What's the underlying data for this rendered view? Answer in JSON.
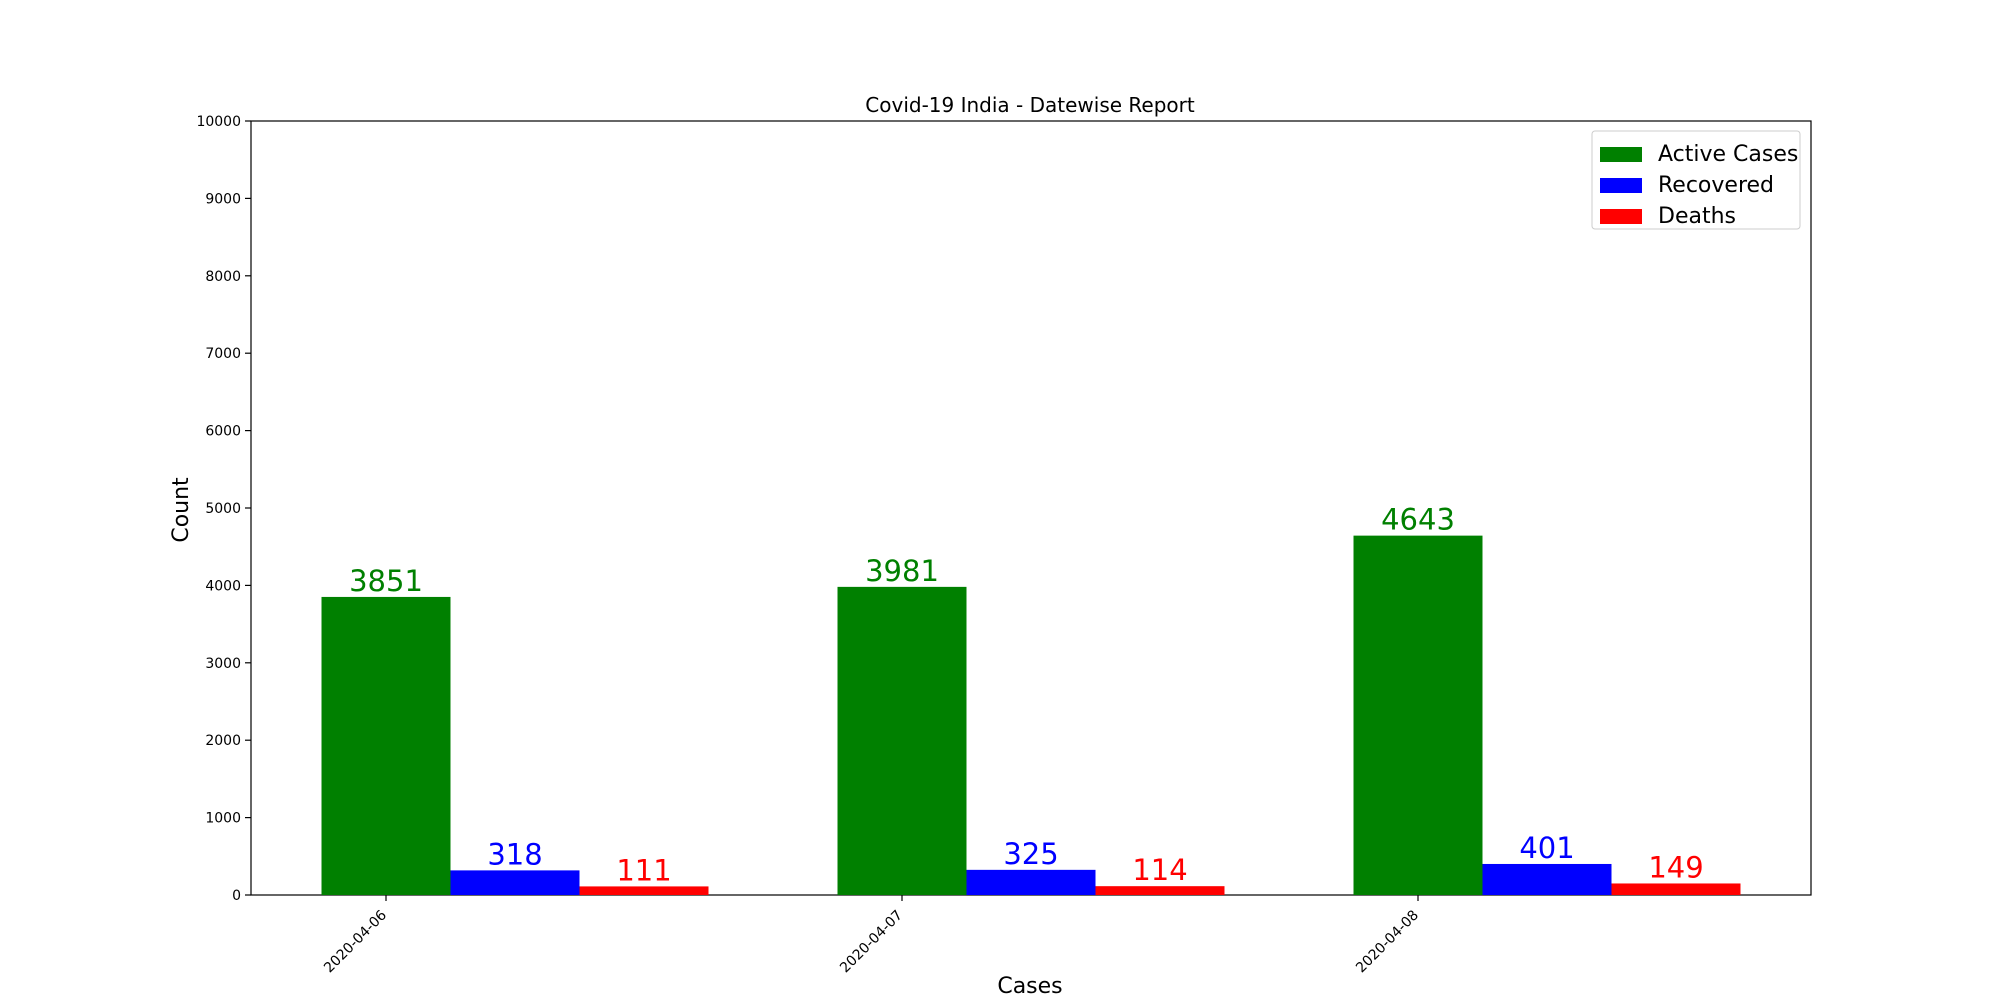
{
  "chart_data": {
    "type": "bar",
    "title": "Covid-19 India - Datewise Report",
    "xlabel": "Cases",
    "ylabel": "Count",
    "ylim": [
      0,
      10000
    ],
    "yticks": [
      0,
      1000,
      2000,
      3000,
      4000,
      5000,
      6000,
      7000,
      8000,
      9000,
      10000
    ],
    "categories": [
      "2020-04-06",
      "2020-04-07",
      "2020-04-08"
    ],
    "series": [
      {
        "name": "Active Cases",
        "color": "#008000",
        "values": [
          3851,
          3981,
          4643
        ]
      },
      {
        "name": "Recovered",
        "color": "#0000ff",
        "values": [
          318,
          325,
          401
        ]
      },
      {
        "name": "Deaths",
        "color": "#ff0000",
        "values": [
          111,
          114,
          149
        ]
      }
    ],
    "legend_position": "top-right",
    "grid": false
  }
}
